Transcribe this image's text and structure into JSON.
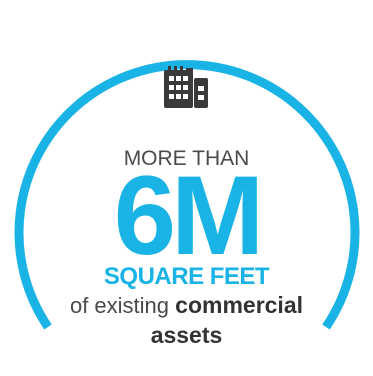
{
  "stat": {
    "eyebrow": "MORE THAN",
    "value": "6M",
    "unit": "SQUARE FEET",
    "desc_prefix": "of existing",
    "desc_emphasis": "commercial",
    "desc_suffix": "assets"
  },
  "icon": "building-icon",
  "colors": {
    "accent": "#1ab3e6",
    "text": "#4a4a4a",
    "strong_text": "#333333",
    "icon": "#3a3a3a"
  }
}
